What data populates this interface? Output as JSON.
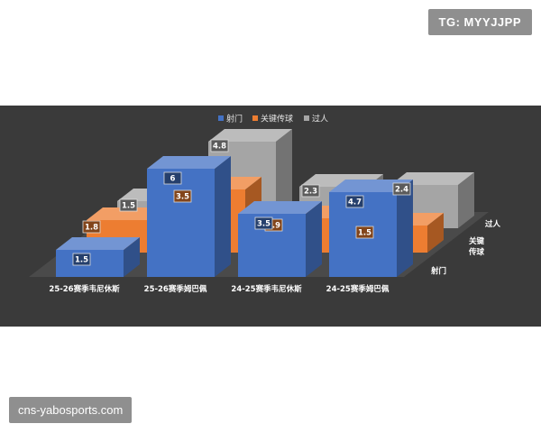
{
  "watermarks": {
    "top": "TG: MYYJJPP",
    "bottom": "cns-yabosports.com"
  },
  "chart_data": {
    "type": "bar",
    "style": "3d-grouped-depth",
    "categories": [
      "25-26赛季韦尼休斯",
      "25-26赛季姆巴佩",
      "24-25赛季韦尼休斯",
      "24-25赛季姆巴佩"
    ],
    "series": [
      {
        "name": "射门",
        "values": [
          1.5,
          6,
          3.5,
          4.7
        ],
        "color": "#4472c4"
      },
      {
        "name": "关键传球",
        "values": [
          1.8,
          3.5,
          1.9,
          1.5
        ],
        "color": "#ed7d31"
      },
      {
        "name": "过人",
        "values": [
          1.5,
          4.8,
          2.3,
          2.4
        ],
        "color": "#a5a5a5"
      }
    ],
    "depth_axis_labels": [
      "过人",
      "关键\n传球",
      "射门"
    ],
    "legend_position": "top",
    "background": "#3a3a3a",
    "grid": false
  }
}
